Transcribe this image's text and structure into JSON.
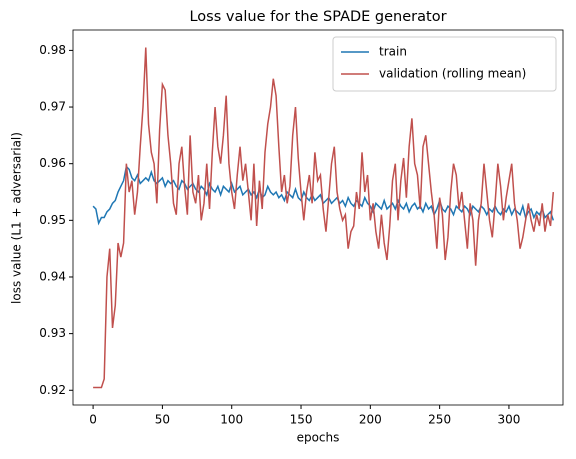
{
  "chart_data": {
    "type": "line",
    "title": "Loss value for the SPADE generator",
    "xlabel": "epochs",
    "ylabel": "loss value (L1 + adversarial)",
    "x": [
      0,
      2,
      4,
      6,
      8,
      10,
      12,
      14,
      16,
      18,
      20,
      22,
      24,
      26,
      28,
      30,
      32,
      34,
      36,
      38,
      40,
      42,
      44,
      46,
      48,
      50,
      52,
      54,
      56,
      58,
      60,
      62,
      64,
      66,
      68,
      70,
      72,
      74,
      76,
      78,
      80,
      82,
      84,
      86,
      88,
      90,
      92,
      94,
      96,
      98,
      100,
      102,
      104,
      106,
      108,
      110,
      112,
      114,
      116,
      118,
      120,
      122,
      124,
      126,
      128,
      130,
      132,
      134,
      136,
      138,
      140,
      142,
      144,
      146,
      148,
      150,
      152,
      154,
      156,
      158,
      160,
      162,
      164,
      166,
      168,
      170,
      172,
      174,
      176,
      178,
      180,
      182,
      184,
      186,
      188,
      190,
      192,
      194,
      196,
      198,
      200,
      202,
      204,
      206,
      208,
      210,
      212,
      214,
      216,
      218,
      220,
      222,
      224,
      226,
      228,
      230,
      232,
      234,
      236,
      238,
      240,
      242,
      244,
      246,
      248,
      250,
      252,
      254,
      256,
      258,
      260,
      262,
      264,
      266,
      268,
      270,
      272,
      274,
      276,
      278,
      280,
      282,
      284,
      286,
      288,
      290,
      292,
      294,
      296,
      298,
      300,
      302,
      304,
      306,
      308,
      310,
      312,
      314,
      316,
      318,
      320,
      322,
      324,
      326,
      328,
      330,
      332
    ],
    "series": [
      {
        "name": "train",
        "color": "#1f77b4",
        "values": [
          0.9525,
          0.952,
          0.9495,
          0.9505,
          0.9505,
          0.9515,
          0.952,
          0.953,
          0.9535,
          0.955,
          0.956,
          0.957,
          0.9595,
          0.959,
          0.9575,
          0.957,
          0.958,
          0.9565,
          0.957,
          0.9575,
          0.957,
          0.9585,
          0.957,
          0.9565,
          0.957,
          0.9575,
          0.956,
          0.957,
          0.9565,
          0.957,
          0.956,
          0.9555,
          0.957,
          0.9565,
          0.9555,
          0.956,
          0.9565,
          0.9555,
          0.955,
          0.956,
          0.9555,
          0.9545,
          0.9565,
          0.9555,
          0.955,
          0.956,
          0.9545,
          0.956,
          0.9555,
          0.955,
          0.9565,
          0.955,
          0.9555,
          0.956,
          0.9545,
          0.955,
          0.9555,
          0.9545,
          0.955,
          0.954,
          0.9555,
          0.954,
          0.9545,
          0.956,
          0.955,
          0.9545,
          0.955,
          0.954,
          0.9545,
          0.9535,
          0.955,
          0.9545,
          0.954,
          0.9555,
          0.954,
          0.9535,
          0.955,
          0.954,
          0.9535,
          0.9545,
          0.9535,
          0.954,
          0.9545,
          0.953,
          0.9535,
          0.954,
          0.953,
          0.9535,
          0.954,
          0.953,
          0.9535,
          0.9525,
          0.954,
          0.953,
          0.9525,
          0.9535,
          0.953,
          0.9525,
          0.954,
          0.953,
          0.9525,
          0.9515,
          0.953,
          0.9525,
          0.952,
          0.9535,
          0.952,
          0.9525,
          0.953,
          0.952,
          0.9535,
          0.9525,
          0.952,
          0.953,
          0.9515,
          0.9525,
          0.953,
          0.952,
          0.9525,
          0.9515,
          0.953,
          0.952,
          0.9525,
          0.951,
          0.952,
          0.9535,
          0.952,
          0.9515,
          0.9525,
          0.952,
          0.951,
          0.9525,
          0.952,
          0.9515,
          0.9525,
          0.952,
          0.951,
          0.9525,
          0.952,
          0.9515,
          0.9525,
          0.952,
          0.951,
          0.952,
          0.9515,
          0.9525,
          0.9515,
          0.951,
          0.952,
          0.9515,
          0.9525,
          0.951,
          0.952,
          0.9515,
          0.951,
          0.9525,
          0.9505,
          0.9515,
          0.952,
          0.9505,
          0.9515,
          0.951,
          0.952,
          0.9505,
          0.951,
          0.9515,
          0.95
        ]
      },
      {
        "name": "validation (rolling mean)",
        "color": "#c0504d",
        "values": [
          0.9205,
          0.9205,
          0.9205,
          0.9205,
          0.922,
          0.94,
          0.945,
          0.931,
          0.935,
          0.946,
          0.9435,
          0.946,
          0.96,
          0.955,
          0.957,
          0.951,
          0.955,
          0.963,
          0.97,
          0.9805,
          0.967,
          0.962,
          0.96,
          0.953,
          0.966,
          0.974,
          0.973,
          0.965,
          0.96,
          0.953,
          0.951,
          0.96,
          0.963,
          0.956,
          0.951,
          0.965,
          0.955,
          0.953,
          0.958,
          0.95,
          0.953,
          0.96,
          0.952,
          0.962,
          0.97,
          0.963,
          0.96,
          0.965,
          0.972,
          0.96,
          0.955,
          0.952,
          0.958,
          0.963,
          0.957,
          0.96,
          0.955,
          0.95,
          0.96,
          0.949,
          0.957,
          0.952,
          0.962,
          0.967,
          0.97,
          0.975,
          0.972,
          0.963,
          0.955,
          0.958,
          0.953,
          0.956,
          0.965,
          0.97,
          0.961,
          0.955,
          0.95,
          0.955,
          0.958,
          0.953,
          0.962,
          0.957,
          0.958,
          0.952,
          0.948,
          0.954,
          0.96,
          0.963,
          0.955,
          0.952,
          0.95,
          0.951,
          0.945,
          0.948,
          0.949,
          0.955,
          0.952,
          0.962,
          0.955,
          0.958,
          0.95,
          0.953,
          0.948,
          0.945,
          0.951,
          0.946,
          0.943,
          0.949,
          0.957,
          0.96,
          0.95,
          0.957,
          0.961,
          0.954,
          0.963,
          0.968,
          0.96,
          0.958,
          0.952,
          0.963,
          0.965,
          0.96,
          0.955,
          0.951,
          0.945,
          0.954,
          0.951,
          0.943,
          0.947,
          0.955,
          0.96,
          0.958,
          0.952,
          0.955,
          0.95,
          0.945,
          0.953,
          0.95,
          0.942,
          0.95,
          0.953,
          0.96,
          0.955,
          0.95,
          0.947,
          0.953,
          0.96,
          0.956,
          0.95,
          0.954,
          0.957,
          0.96,
          0.953,
          0.95,
          0.945,
          0.947,
          0.95,
          0.953,
          0.95,
          0.948,
          0.951,
          0.949,
          0.953,
          0.948,
          0.951,
          0.949,
          0.955
        ]
      }
    ],
    "xlim": [
      -14.5,
      339
    ],
    "xticks": [
      0,
      50,
      100,
      150,
      200,
      250,
      300
    ],
    "ylim": [
      0.9174,
      0.9836
    ],
    "yticks": [
      0.92,
      0.93,
      0.94,
      0.95,
      0.96,
      0.97,
      0.98
    ],
    "legend": "upper right"
  }
}
